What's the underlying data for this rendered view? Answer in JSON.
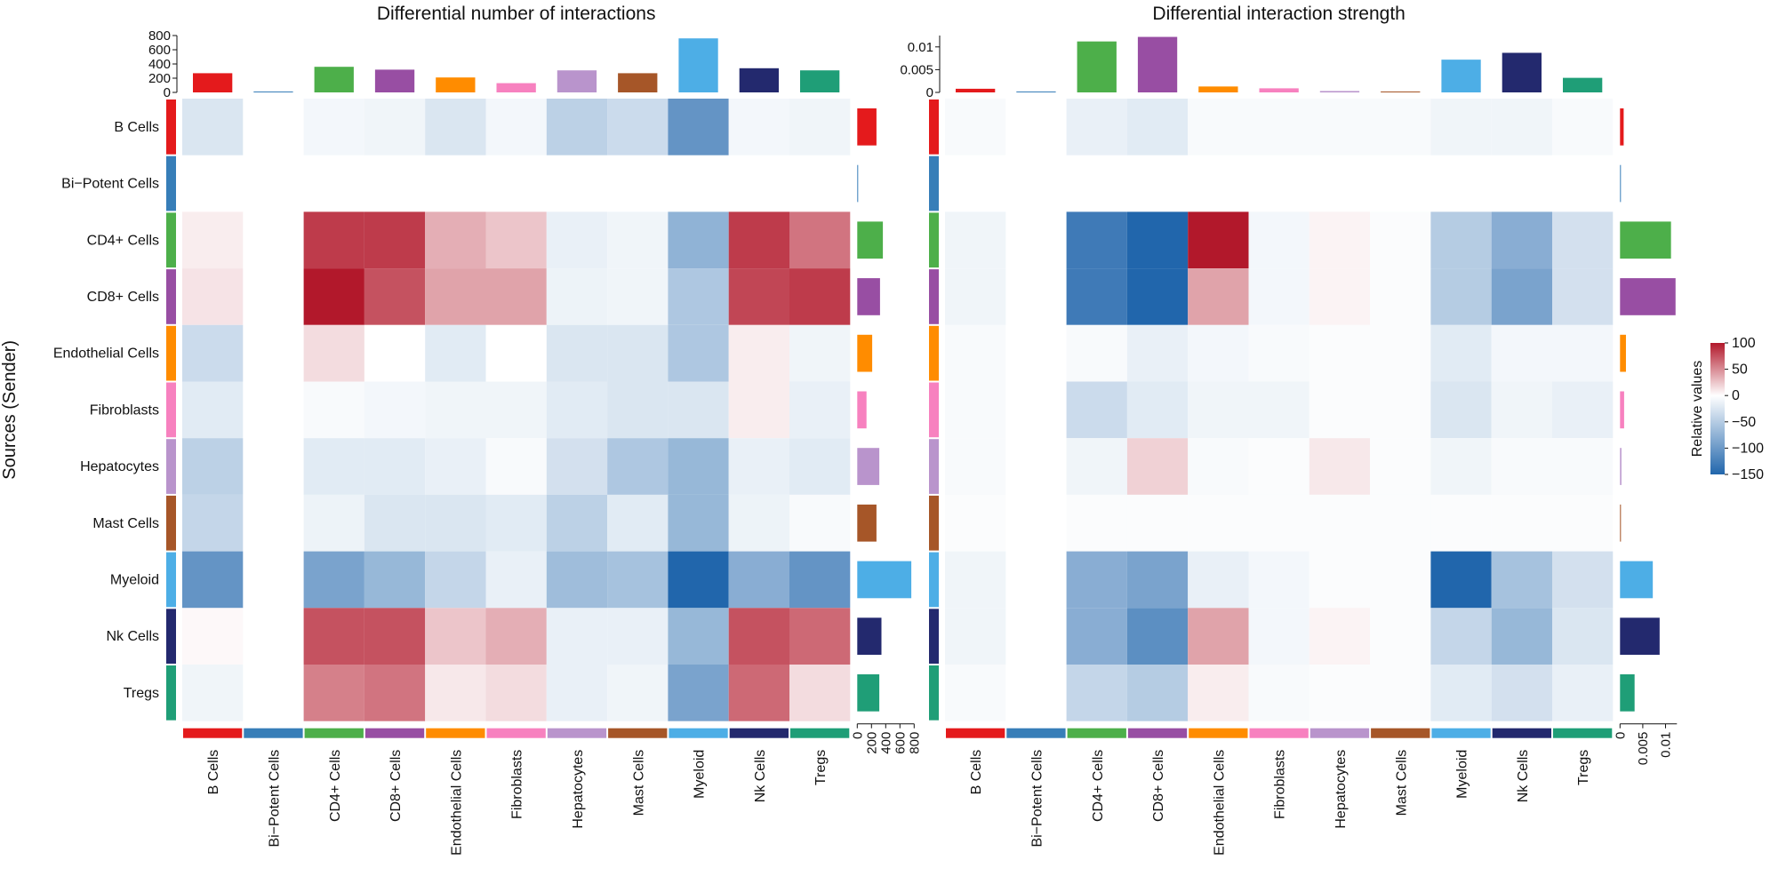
{
  "chart_data": {
    "type": "heatmap",
    "ylabel": "Sources (Sender)",
    "rows": [
      "B Cells",
      "Bi−Potent Cells",
      "CD4+ Cells",
      "CD8+ Cells",
      "Endothelial Cells",
      "Fibroblasts",
      "Hepatocytes",
      "Mast Cells",
      "Myeloid",
      "Nk Cells",
      "Tregs"
    ],
    "columns": [
      "B Cells",
      "Bi−Potent Cells",
      "CD4+ Cells",
      "CD8+ Cells",
      "Endothelial Cells",
      "Fibroblasts",
      "Hepatocytes",
      "Mast Cells",
      "Myeloid",
      "Nk Cells",
      "Tregs"
    ],
    "group_colors": [
      "#e41a1c",
      "#377eb8",
      "#4daf4a",
      "#984ea3",
      "#ff8c00",
      "#f781bf",
      "#b994cc",
      "#a65628",
      "#4daee6",
      "#23296e",
      "#1f9e77"
    ],
    "color_scale": {
      "title": "Relative values",
      "range": [
        -150,
        100
      ],
      "ticks": [
        100,
        50,
        0,
        -50,
        -100,
        -150
      ],
      "low_color": "#2166ac",
      "mid_color": "#ffffff",
      "high_color": "#b2182b"
    },
    "panels": [
      {
        "title": "Differential number of interactions",
        "top_bar": {
          "values": [
            270,
            12,
            360,
            320,
            210,
            130,
            310,
            270,
            760,
            340,
            310
          ],
          "ticks": [
            800,
            600,
            400,
            200,
            0
          ],
          "max": 800
        },
        "side_bar": {
          "values": [
            270,
            12,
            360,
            320,
            210,
            130,
            310,
            270,
            760,
            340,
            310
          ],
          "ticks": [
            0,
            200,
            400,
            600,
            800
          ],
          "max": 800
        },
        "matrix": [
          [
            -25,
            null,
            -8,
            -10,
            -25,
            -8,
            -45,
            -35,
            -105,
            -8,
            -10
          ],
          [
            null,
            null,
            null,
            null,
            null,
            null,
            null,
            null,
            null,
            null,
            null
          ],
          [
            8,
            null,
            85,
            85,
            35,
            25,
            -15,
            -10,
            -75,
            85,
            60
          ],
          [
            12,
            null,
            100,
            75,
            40,
            40,
            -12,
            -10,
            -55,
            80,
            85
          ],
          [
            -35,
            null,
            15,
            0,
            -20,
            0,
            -25,
            -25,
            -55,
            8,
            -10
          ],
          [
            -20,
            null,
            -5,
            -8,
            -10,
            -10,
            -20,
            -25,
            -25,
            8,
            -15
          ],
          [
            -45,
            null,
            -20,
            -20,
            -15,
            -5,
            -30,
            -55,
            -70,
            -15,
            -20
          ],
          [
            -40,
            null,
            -12,
            -25,
            -25,
            -20,
            -45,
            -20,
            -70,
            -12,
            -5
          ],
          [
            -105,
            null,
            -90,
            -70,
            -40,
            -15,
            -65,
            -60,
            -150,
            -80,
            -105
          ],
          [
            3,
            null,
            75,
            75,
            25,
            35,
            -15,
            -15,
            -70,
            75,
            65
          ],
          [
            -10,
            null,
            55,
            60,
            10,
            15,
            -15,
            -10,
            -90,
            65,
            15
          ]
        ]
      },
      {
        "title": "Differential interaction strength",
        "top_bar": {
          "values": [
            0.0008,
            0.0001,
            0.0112,
            0.0122,
            0.0013,
            0.0009,
            0.0003,
            0.0002,
            0.0072,
            0.0087,
            0.0032
          ],
          "ticks": [
            0.01,
            0.005,
            0
          ],
          "max": 0.0125
        },
        "side_bar": {
          "values": [
            0.0008,
            0.0001,
            0.0112,
            0.0122,
            0.0013,
            0.0009,
            0.0003,
            0.0002,
            0.0072,
            0.0087,
            0.0032
          ],
          "ticks": [
            0,
            0.005,
            0.01
          ],
          "max": 0.0125
        },
        "matrix": [
          [
            -5,
            null,
            -15,
            -20,
            -5,
            -5,
            -5,
            -5,
            -10,
            -10,
            -5
          ],
          [
            null,
            null,
            null,
            null,
            null,
            null,
            null,
            null,
            null,
            null,
            null
          ],
          [
            -10,
            null,
            -130,
            -150,
            100,
            -8,
            5,
            -3,
            -50,
            -80,
            -30
          ],
          [
            -10,
            null,
            -130,
            -150,
            40,
            -8,
            5,
            -3,
            -50,
            -90,
            -30
          ],
          [
            -5,
            null,
            -5,
            -15,
            -8,
            -5,
            -3,
            -3,
            -20,
            -8,
            -8
          ],
          [
            -5,
            null,
            -35,
            -20,
            -10,
            -10,
            -3,
            -3,
            -25,
            -10,
            -15
          ],
          [
            -5,
            null,
            -10,
            20,
            -5,
            -3,
            10,
            -3,
            -10,
            -5,
            -5
          ],
          [
            -3,
            null,
            -3,
            -3,
            -3,
            -3,
            -3,
            -3,
            -3,
            -3,
            -3
          ],
          [
            -10,
            null,
            -80,
            -90,
            -15,
            -8,
            -3,
            -3,
            -150,
            -60,
            -30
          ],
          [
            -10,
            null,
            -80,
            -110,
            40,
            -8,
            5,
            -3,
            -40,
            -70,
            -25
          ],
          [
            -5,
            null,
            -40,
            -50,
            8,
            -5,
            -3,
            -3,
            -20,
            -30,
            -15
          ]
        ]
      }
    ]
  }
}
